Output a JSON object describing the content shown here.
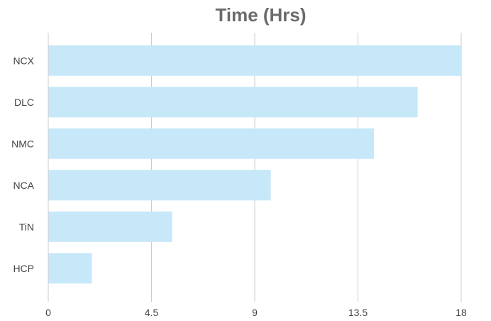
{
  "chart_data": {
    "type": "bar",
    "orientation": "horizontal",
    "title": "Time (Hrs)",
    "xlabel": "",
    "ylabel": "",
    "categories": [
      "NCX",
      "DLC",
      "NMC",
      "NCA",
      "TiN",
      "HCP"
    ],
    "values": [
      18,
      16.1,
      14.2,
      9.7,
      5.4,
      1.9
    ],
    "xlim": [
      0,
      18
    ],
    "xticks": [
      "0",
      "4.5",
      "9",
      "13.5",
      "18"
    ],
    "grid": true,
    "legend": "none",
    "bar_color": "#c7e8f8",
    "grid_color": "#cccccc"
  }
}
